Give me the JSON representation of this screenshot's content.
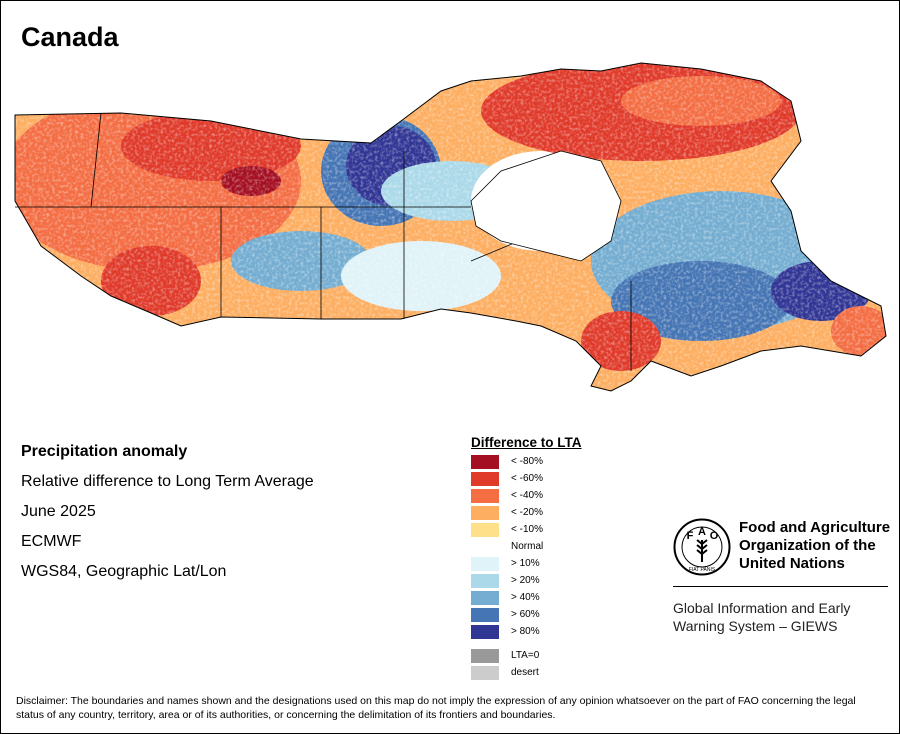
{
  "title": "Canada",
  "info": {
    "lines": [
      "Precipitation anomaly",
      "Relative difference to Long Term Average",
      "June 2025",
      "ECMWF",
      "WGS84, Geographic Lat/Lon"
    ]
  },
  "legend": {
    "title": "Difference to LTA",
    "dry": [
      {
        "label": "< -80%",
        "color": "#a50f22"
      },
      {
        "label": "< -60%",
        "color": "#e03a2a"
      },
      {
        "label": "< -40%",
        "color": "#f46d43"
      },
      {
        "label": "< -20%",
        "color": "#fdae61"
      },
      {
        "label": "< -10%",
        "color": "#fee08b"
      }
    ],
    "normal": {
      "label": "Normal"
    },
    "wet": [
      {
        "label": "> 10%",
        "color": "#e0f3f8"
      },
      {
        "label": "> 20%",
        "color": "#abd9e9"
      },
      {
        "label": "> 40%",
        "color": "#74add1"
      },
      {
        "label": "> 60%",
        "color": "#4575b4"
      },
      {
        "label": "> 80%",
        "color": "#313695"
      }
    ],
    "other": [
      {
        "label": "LTA=0",
        "color": "#999999"
      },
      {
        "label": "desert",
        "color": "#cccccc"
      }
    ]
  },
  "fao": {
    "name_lines": [
      "Food and Agriculture",
      "Organization of the",
      "United Nations"
    ],
    "logo_letters": [
      "F",
      "A",
      "O"
    ],
    "motto": "FIAT PANIS",
    "giews_lines": [
      "Global Information and Early",
      "Warning System – GIEWS"
    ]
  },
  "disclaimer": "Disclaimer: The boundaries and names shown and the designations used on this map do not imply the expression of any opinion whatsoever on the part of FAO concerning the legal status of any country, territory, area or of its authorities, or concerning the delimitation of its frontiers and boundaries."
}
